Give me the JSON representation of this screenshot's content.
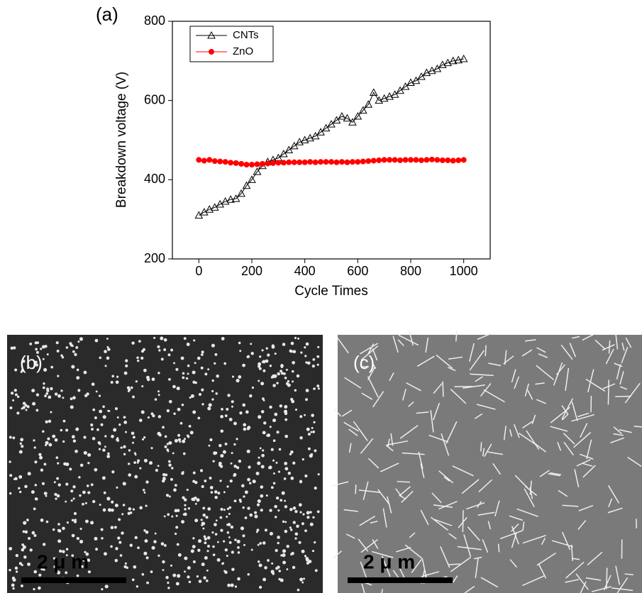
{
  "chart_data": {
    "type": "line",
    "panel_label": "(a)",
    "x_label": "Cycle Times",
    "y_label": "Breakdown voltage (V)",
    "xlim": [
      -100,
      1100
    ],
    "xticks": [
      0,
      200,
      400,
      600,
      800,
      1000
    ],
    "ylim": [
      200,
      800
    ],
    "yticks": [
      200,
      400,
      600,
      800
    ],
    "legend": "upper left",
    "x": [
      0,
      20,
      40,
      60,
      80,
      100,
      120,
      140,
      160,
      180,
      200,
      220,
      240,
      260,
      280,
      300,
      320,
      340,
      360,
      380,
      400,
      420,
      440,
      460,
      480,
      500,
      520,
      540,
      560,
      580,
      600,
      620,
      640,
      660,
      680,
      700,
      720,
      740,
      760,
      780,
      800,
      820,
      840,
      860,
      880,
      900,
      920,
      940,
      960,
      980,
      1000
    ],
    "series": [
      {
        "name": "CNTs",
        "color": "#000000",
        "marker": "triangle-open",
        "values": [
          310,
          318,
          325,
          330,
          338,
          345,
          350,
          352,
          365,
          385,
          400,
          420,
          435,
          445,
          450,
          455,
          465,
          475,
          485,
          495,
          500,
          505,
          510,
          520,
          530,
          540,
          550,
          560,
          555,
          545,
          560,
          575,
          590,
          620,
          600,
          605,
          610,
          615,
          625,
          635,
          645,
          650,
          660,
          670,
          675,
          680,
          690,
          695,
          700,
          702,
          705
        ]
      },
      {
        "name": "ZnO",
        "color": "#ff0000",
        "marker": "circle",
        "values": [
          450,
          448,
          450,
          447,
          446,
          445,
          443,
          442,
          440,
          438,
          438,
          439,
          440,
          441,
          442,
          443,
          443,
          444,
          444,
          444,
          444,
          445,
          444,
          445,
          445,
          445,
          444,
          445,
          444,
          445,
          445,
          446,
          447,
          448,
          449,
          450,
          450,
          450,
          449,
          450,
          450,
          450,
          449,
          450,
          451,
          450,
          449,
          449,
          448,
          449,
          450
        ]
      }
    ]
  },
  "images": [
    {
      "label": "(b)",
      "scale_bar": "2 μ m"
    },
    {
      "label": "(c)",
      "scale_bar": "2 μ m"
    }
  ]
}
